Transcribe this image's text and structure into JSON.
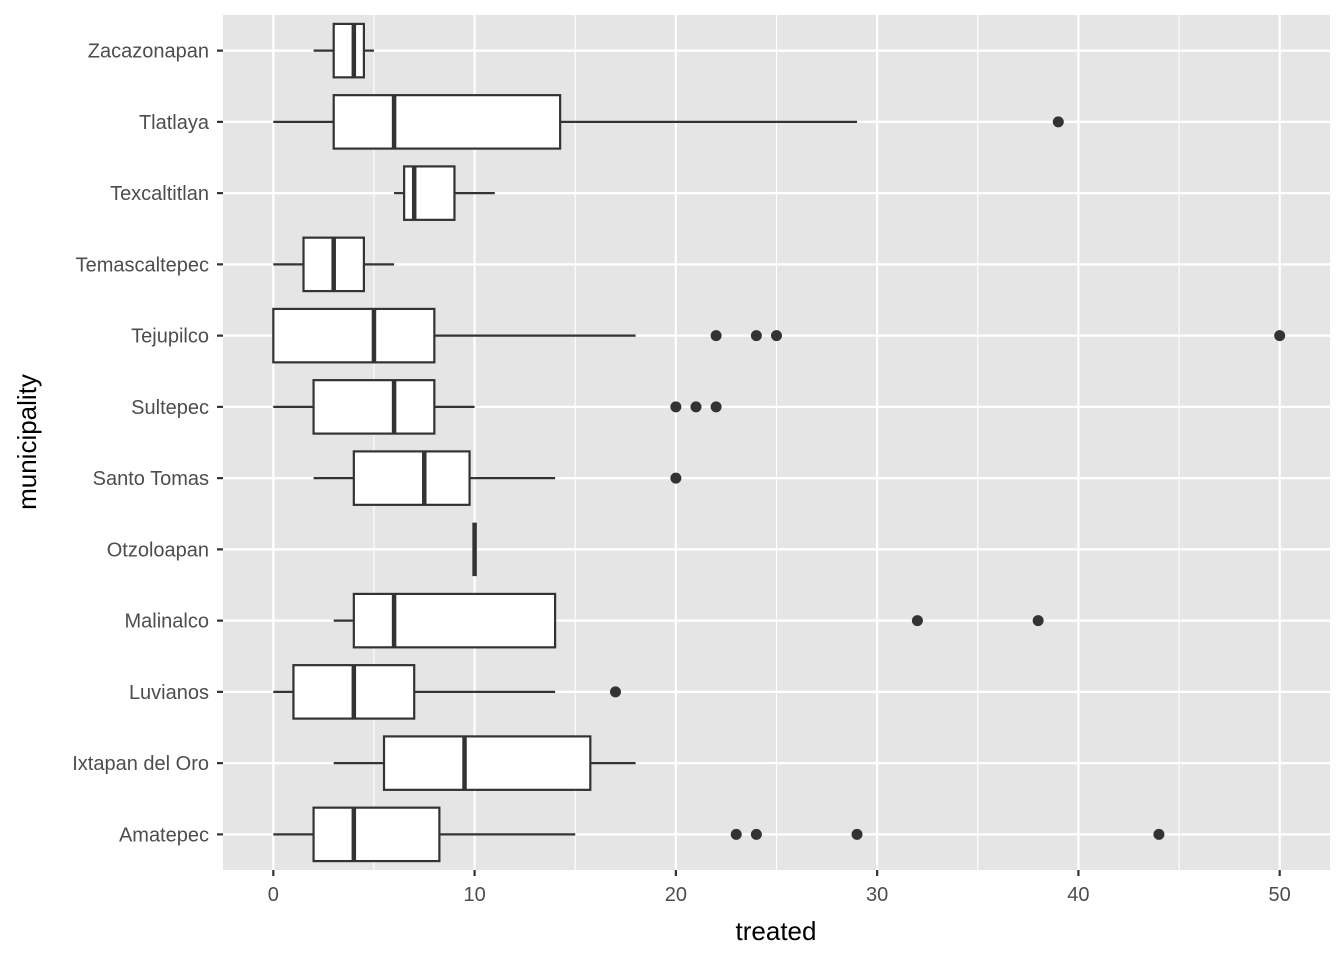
{
  "chart_data": {
    "type": "boxplot",
    "orientation": "horizontal",
    "xlabel": "treated",
    "ylabel": "municipality",
    "xlim": [
      -2.5,
      52.5
    ],
    "x_ticks": [
      0,
      10,
      20,
      30,
      40,
      50
    ],
    "x_tick_labels": [
      "0",
      "10",
      "20",
      "30",
      "40",
      "50"
    ],
    "grid": true,
    "colors": {
      "panel_bg": "#e5e5e5",
      "grid": "#ffffff",
      "box_fill": "#ffffff",
      "box_line": "#333333",
      "outlier": "#333333",
      "tick_text": "#4d4d4d"
    },
    "categories": [
      "Amatepec",
      "Ixtapan del Oro",
      "Luvianos",
      "Malinalco",
      "Otzoloapan",
      "Santo Tomas",
      "Sultepec",
      "Tejupilco",
      "Temascaltepec",
      "Texcaltitlan",
      "Tlatlaya",
      "Zacazonapan"
    ],
    "boxes": [
      {
        "category": "Amatepec",
        "whisker_low": 0,
        "q1": 2,
        "median": 4,
        "q3": 8.25,
        "whisker_high": 15,
        "outliers": [
          23,
          24,
          29,
          44
        ]
      },
      {
        "category": "Ixtapan del Oro",
        "whisker_low": 3,
        "q1": 5.5,
        "median": 9.5,
        "q3": 15.75,
        "whisker_high": 18,
        "outliers": []
      },
      {
        "category": "Luvianos",
        "whisker_low": 0,
        "q1": 1,
        "median": 4,
        "q3": 7,
        "whisker_high": 14,
        "outliers": [
          17
        ]
      },
      {
        "category": "Malinalco",
        "whisker_low": 3,
        "q1": 4,
        "median": 6,
        "q3": 14,
        "whisker_high": 14,
        "outliers": [
          32,
          38
        ]
      },
      {
        "category": "Otzoloapan",
        "whisker_low": 10,
        "q1": 10,
        "median": 10,
        "q3": 10,
        "whisker_high": 10,
        "outliers": []
      },
      {
        "category": "Santo Tomas",
        "whisker_low": 2,
        "q1": 4,
        "median": 7.5,
        "q3": 9.75,
        "whisker_high": 14,
        "outliers": [
          20
        ]
      },
      {
        "category": "Sultepec",
        "whisker_low": 0,
        "q1": 2,
        "median": 6,
        "q3": 8,
        "whisker_high": 10,
        "outliers": [
          20,
          21,
          22
        ]
      },
      {
        "category": "Tejupilco",
        "whisker_low": 0,
        "q1": 0,
        "median": 5,
        "q3": 8,
        "whisker_high": 18,
        "outliers": [
          22,
          24,
          25,
          50
        ]
      },
      {
        "category": "Temascaltepec",
        "whisker_low": 0,
        "q1": 1.5,
        "median": 3,
        "q3": 4.5,
        "whisker_high": 6,
        "outliers": []
      },
      {
        "category": "Texcaltitlan",
        "whisker_low": 6,
        "q1": 6.5,
        "median": 7,
        "q3": 9,
        "whisker_high": 11,
        "outliers": []
      },
      {
        "category": "Tlatlaya",
        "whisker_low": 0,
        "q1": 3,
        "median": 6,
        "q3": 14.25,
        "whisker_high": 29,
        "outliers": [
          39
        ]
      },
      {
        "category": "Zacazonapan",
        "whisker_low": 2,
        "q1": 3,
        "median": 4,
        "q3": 4.5,
        "whisker_high": 5,
        "outliers": []
      }
    ]
  }
}
